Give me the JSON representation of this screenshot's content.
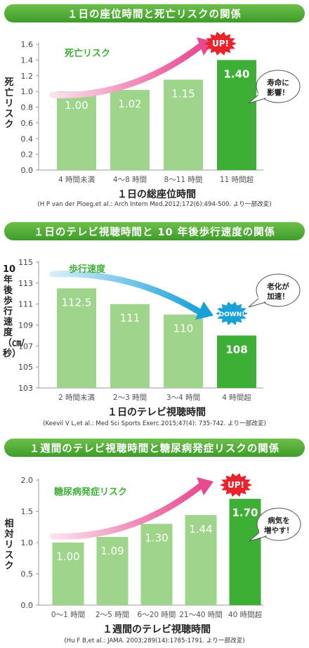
{
  "colors": {
    "header": "#4caf38",
    "bar_light": "#9fd58a",
    "bar_dark": "#3daf35",
    "up_badge": "#e8232b",
    "down_badge": "#1aa0d8",
    "series_text": "#3daf35",
    "axis": "#999999"
  },
  "chart_data": [
    {
      "type": "bar",
      "title": "１日の座位時間と死亡リスクの関係",
      "categories": [
        "4 時間未満",
        "4〜8 時間",
        "8〜11 時間",
        "11 時間超"
      ],
      "values": [
        1.0,
        1.02,
        1.15,
        1.4
      ],
      "value_labels": [
        "1.00",
        "1.02",
        "1.15",
        "1.40"
      ],
      "xlabel": "１日の総座位時間",
      "ylabel": "死亡リスク",
      "ylim": [
        0.0,
        1.6
      ],
      "yticks": [
        "0.0",
        "0.2",
        "0.4",
        "0.6",
        "0.8",
        "1.0",
        "1.2",
        "1.4",
        "1.6"
      ],
      "trend_label": "死亡リスク",
      "badge": "UP!",
      "bubble": "寿命に\n影響！",
      "citation": "(H P van der Ploeg,et al.: Arch Intern Med.2012;172(6):494-500. より一部改変)"
    },
    {
      "type": "bar",
      "title": "１日のテレビ視聴時間と 10 年後歩行速度の関係",
      "categories": [
        "2 時間未満",
        "2〜3 時間",
        "3〜4 時間",
        "4 時間超"
      ],
      "values": [
        112.5,
        111,
        110,
        108
      ],
      "value_labels": [
        "112.5",
        "111",
        "110",
        "108"
      ],
      "xlabel": "１日のテレビ視聴時間",
      "ylabel": "10年後歩行速度（㎝/秒）",
      "ylim": [
        103,
        115
      ],
      "yticks": [
        "103",
        "105",
        "107",
        "109",
        "111",
        "113",
        "115"
      ],
      "trend_label": "歩行速度",
      "badge": "DOWN!",
      "bubble": "老化が\n加速！",
      "citation": "(Keevil V L,et al.: Med Sci Sports Exerc.2015;47(4): 735-742. より一部改変)"
    },
    {
      "type": "bar",
      "title": "１週間のテレビ視聴時間と糖尿病発症リスクの関係",
      "categories": [
        "0〜1 時間",
        "2〜5 時間",
        "6〜20 時間",
        "21〜40 時間",
        "40 時間超"
      ],
      "values": [
        1.0,
        1.09,
        1.3,
        1.44,
        1.7
      ],
      "value_labels": [
        "1.00",
        "1.09",
        "1.30",
        "1.44",
        "1.70"
      ],
      "xlabel": "１週間のテレビ視聴時間",
      "ylabel": "相対リスク",
      "ylim": [
        0.0,
        2.0
      ],
      "yticks": [
        "0.0",
        "0.5",
        "1.0",
        "1.5",
        "2.0"
      ],
      "trend_label": "糖尿病発症リスク",
      "badge": "UP!",
      "bubble": "病気を\n増やす！",
      "citation": "(Hu F B,et al.: JAMA. 2003;289(14):1785-1791. より一部改変)"
    }
  ]
}
